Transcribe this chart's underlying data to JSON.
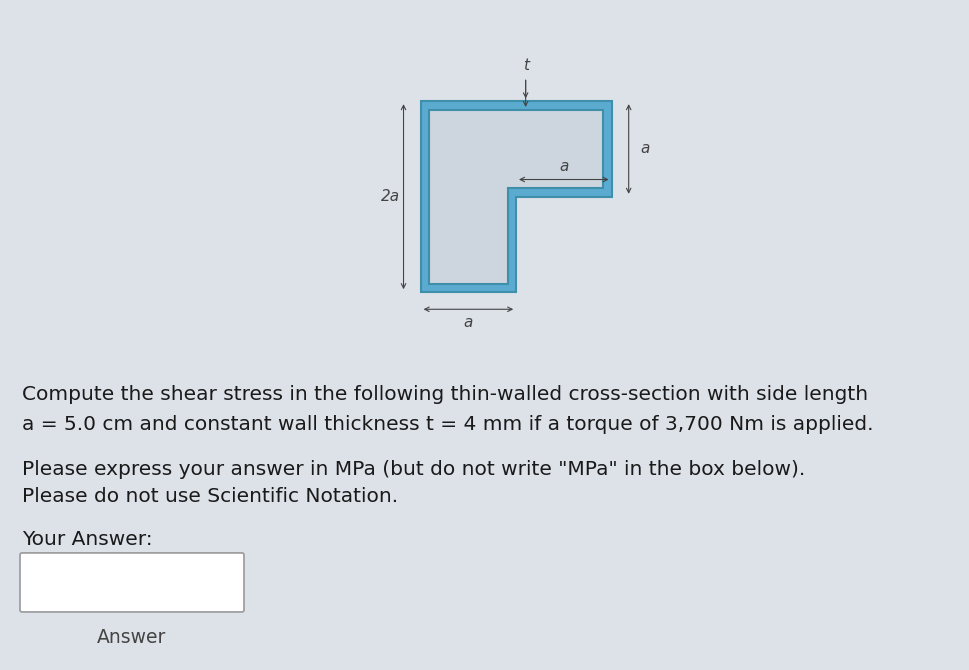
{
  "bg_color": "#dde1e8",
  "shape_fill": "#5aabcf",
  "shape_inner_fill": "#cdd5de",
  "wall_thickness_display": 0.09,
  "a": 1.0,
  "your_answer_label": "Your Answer:",
  "answer_label": "Answer",
  "label_2a": "2a",
  "label_a_bottom": "a",
  "label_a_right": "a",
  "label_a_horiz": "a",
  "label_t": "t",
  "line1": "Compute the shear stress in the following thin-walled cross-section with side length",
  "line2": "a = 5.0 cm and constant wall thickness t = 4 mm if a torque of 3,700 Nm is applied.",
  "line3": "Please express your answer in MPa (but do not write \"MPa\" in the box below).",
  "line4": "Please do not use Scientific Notation.",
  "text_color": "#1a1a1a",
  "text_fontsize": 14.5,
  "arrow_color": "#444444"
}
